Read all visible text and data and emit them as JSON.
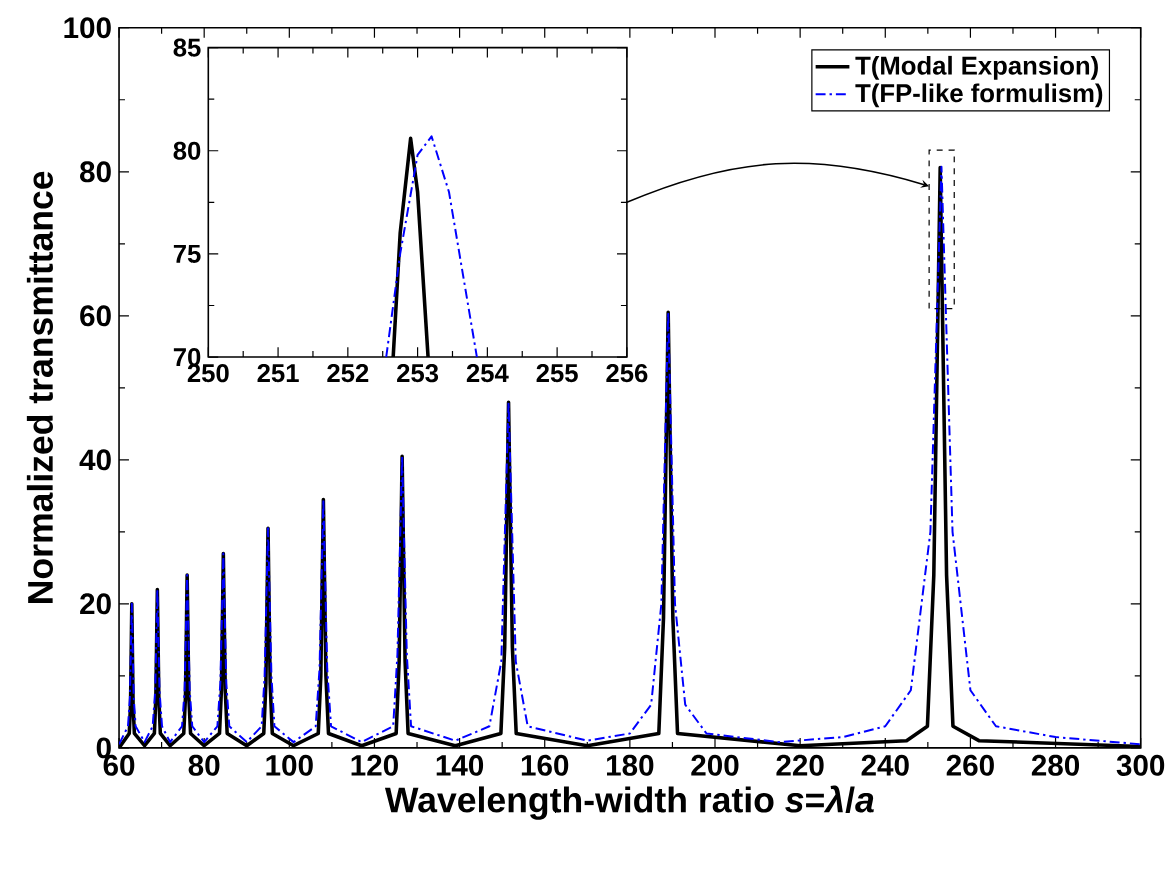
{
  "chart_data": [
    {
      "type": "line",
      "xlabel": "Wavelength-width ratio *s*=*λ*/*a*",
      "ylabel": "Normalized transmittance",
      "xlim": [
        60,
        300
      ],
      "ylim": [
        0,
        100
      ],
      "xticks": [
        60,
        80,
        100,
        120,
        140,
        160,
        180,
        200,
        220,
        240,
        260,
        280,
        300
      ],
      "yticks": [
        0,
        20,
        40,
        60,
        80,
        100
      ],
      "legend": "top right",
      "series": [
        {
          "name": "T(Modal Expansion)",
          "color": "#000000",
          "line_style": "solid",
          "x": [
            60,
            62.4,
            62.7,
            63,
            63.3,
            63.6,
            66,
            68.3,
            68.65,
            69,
            69.35,
            69.7,
            72,
            75.2,
            75.6,
            76,
            76.4,
            76.8,
            80,
            83.6,
            84.05,
            84.5,
            84.95,
            85.4,
            90,
            94,
            94.5,
            95,
            95.5,
            96,
            101,
            106.8,
            107.4,
            108,
            108.6,
            109.2,
            117,
            125.1,
            125.8,
            126.5,
            127.2,
            127.9,
            139,
            149.7,
            150.6,
            151.5,
            152.4,
            153.3,
            170,
            186.8,
            187.9,
            189,
            190.1,
            191.2,
            220,
            245,
            249.9,
            251.4,
            252.9,
            254.4,
            255.9,
            262,
            300
          ],
          "values": [
            0,
            2,
            6,
            20,
            6,
            2,
            0.3,
            2,
            7,
            22,
            7,
            2,
            0.3,
            2,
            7,
            24,
            7,
            2,
            0.3,
            2,
            8,
            27,
            8,
            2,
            0.3,
            2,
            9,
            30.5,
            9,
            2,
            0.3,
            2,
            10,
            34.5,
            10,
            2,
            0.3,
            2,
            12,
            40.5,
            12,
            2,
            0.3,
            2,
            14,
            48,
            14,
            2,
            0.3,
            2,
            18,
            60.5,
            18,
            2,
            0.3,
            1,
            3,
            24,
            80.6,
            24,
            3,
            1,
            0.2
          ]
        },
        {
          "name": "T(FP-like formulism)",
          "color": "#0000ff",
          "line_style": "dashdot",
          "x": [
            60,
            62.1,
            62.55,
            63,
            63.45,
            63.9,
            66,
            67.9,
            68.5,
            69,
            69.5,
            70.1,
            72,
            74.8,
            75.4,
            76,
            76.6,
            77.2,
            80,
            83.1,
            83.8,
            84.5,
            85.2,
            85.9,
            90,
            93.5,
            94.2,
            95,
            95.8,
            96.5,
            101,
            106.2,
            107.1,
            108,
            108.9,
            109.8,
            117,
            124.4,
            125.4,
            126.5,
            127.6,
            128.6,
            139,
            147,
            149.8,
            151.5,
            153.2,
            156,
            170,
            180,
            185,
            187.4,
            189,
            190.6,
            193,
            198,
            215,
            230,
            240,
            246,
            250.6,
            253.2,
            255.8,
            260,
            266,
            280,
            300
          ],
          "values": [
            0.5,
            3,
            7,
            20,
            7,
            3,
            0.8,
            3,
            8,
            22,
            8,
            3,
            0.8,
            3,
            8,
            24,
            8,
            3,
            0.8,
            3,
            9,
            27,
            9,
            3,
            0.8,
            3,
            10,
            30.5,
            10,
            3,
            0.8,
            3,
            11,
            34.5,
            11,
            3,
            0.8,
            3,
            13,
            40.5,
            13,
            3,
            1,
            3,
            12,
            48,
            12,
            3,
            1,
            2,
            6,
            20,
            60.5,
            20,
            6,
            2,
            0.8,
            1.5,
            3,
            8,
            30,
            80.7,
            30,
            8,
            3,
            1.5,
            0.5
          ]
        }
      ]
    },
    {
      "type": "line",
      "xlim": [
        250,
        256
      ],
      "ylim": [
        70,
        85
      ],
      "xticks": [
        250,
        251,
        252,
        253,
        254,
        255,
        256
      ],
      "yticks": [
        70,
        75,
        80,
        85
      ],
      "series": [
        {
          "color": "#000000",
          "line_style": "solid",
          "x": [
            252.65,
            252.75,
            252.9,
            253.0,
            253.15
          ],
          "values": [
            70,
            76,
            80.6,
            78,
            70
          ]
        },
        {
          "color": "#0000ff",
          "line_style": "dashdot",
          "x": [
            252.55,
            252.75,
            253.0,
            253.2,
            253.45,
            253.65,
            253.85
          ],
          "values": [
            70,
            75,
            79.8,
            80.7,
            78,
            74,
            70
          ]
        }
      ]
    }
  ]
}
